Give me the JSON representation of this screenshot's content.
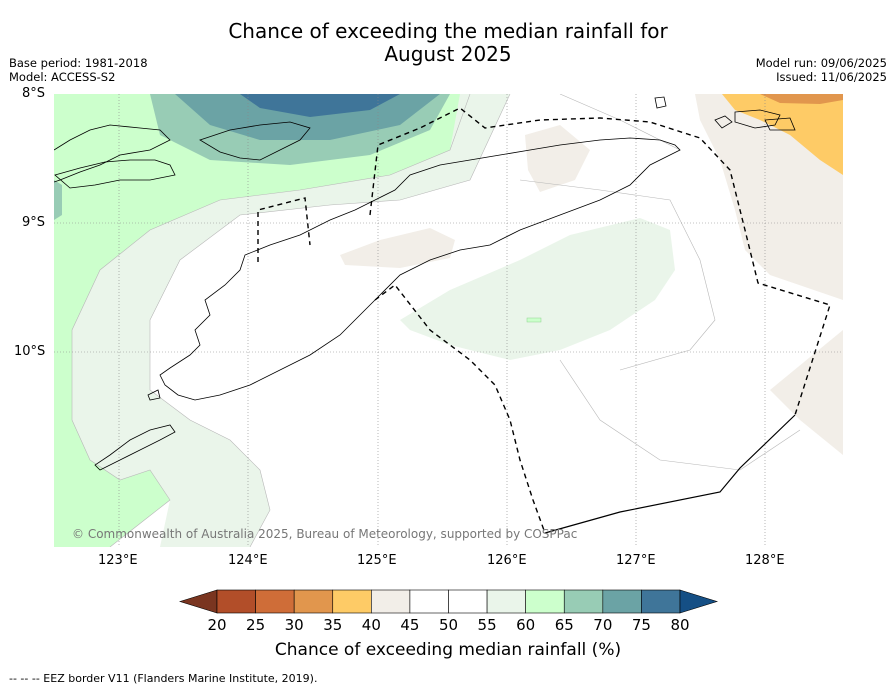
{
  "title_line1": "Chance of exceeding the median rainfall for",
  "title_line2": "August 2025",
  "meta_left": {
    "base_period": "Base period: 1981-2018",
    "model": "Model: ACCESS-S2"
  },
  "meta_right": {
    "model_run": "Model run: 09/06/2025",
    "issued": "Issued: 11/06/2025"
  },
  "lat_labels": [
    "8°S",
    "9°S",
    "10°S"
  ],
  "lon_labels": [
    "123°E",
    "124°E",
    "125°E",
    "126°E",
    "127°E",
    "128°E"
  ],
  "copyright": "© Commonwealth of Australia 2025, Bureau of Meteorology, supported by COSPPac",
  "colorbar": {
    "title": "Chance of exceeding median rainfall (%)",
    "ticks": [
      "20",
      "25",
      "30",
      "35",
      "40",
      "45",
      "50",
      "55",
      "60",
      "65",
      "70",
      "75",
      "80"
    ],
    "colors": [
      "#7a3520",
      "#b24e29",
      "#cf6d38",
      "#e1964d",
      "#fecb66",
      "#f2eee8",
      "#ffffff",
      "#ffffff",
      "#eaf5ea",
      "#ccffcc",
      "#98ccb5",
      "#6ba3a5",
      "#3f7599",
      "#154f85"
    ]
  },
  "footer": "--  --  -- EEZ border V11 (Flanders Marine Institute, 2019)."
}
